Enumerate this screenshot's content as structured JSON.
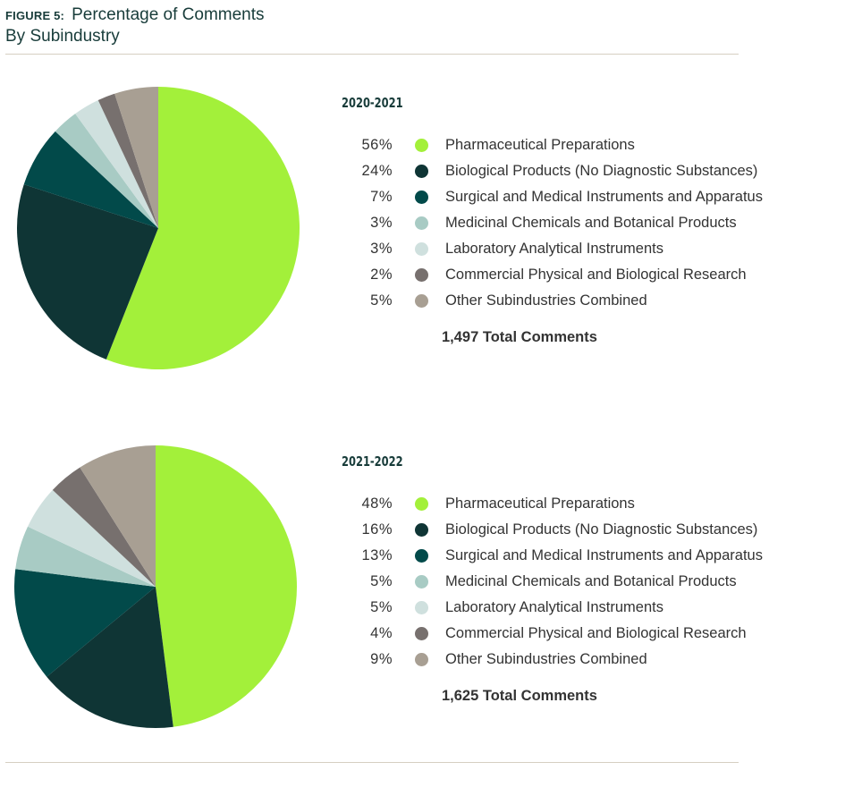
{
  "header": {
    "figure_label": "FIGURE 5:",
    "title": "Percentage of Comments",
    "subtitle": "By Subindustry"
  },
  "chart_data": [
    {
      "type": "pie",
      "title": "2020-2021",
      "categories": [
        "Pharmaceutical Preparations",
        "Biological Products (No Diagnostic Substances)",
        "Surgical and Medical Instruments and Apparatus",
        "Medicinal Chemicals and Botanical Products",
        "Laboratory Analytical Instruments",
        "Commercial Physical and Biological Research",
        "Other Subindustries Combined"
      ],
      "values": [
        56,
        24,
        7,
        3,
        3,
        2,
        5
      ],
      "labels": [
        "56%",
        "24%",
        "7%",
        "3%",
        "3%",
        "2%",
        "5%"
      ],
      "total": "1,497 Total Comments"
    },
    {
      "type": "pie",
      "title": "2021-2022",
      "categories": [
        "Pharmaceutical Preparations",
        "Biological Products (No Diagnostic Substances)",
        "Surgical and Medical Instruments and Apparatus",
        "Medicinal Chemicals and Botanical Products",
        "Laboratory Analytical Instruments",
        "Commercial Physical and Biological Research",
        "Other Subindustries Combined"
      ],
      "values": [
        48,
        16,
        13,
        5,
        5,
        4,
        9
      ],
      "labels": [
        "48%",
        "16%",
        "13%",
        "5%",
        "5%",
        "4%",
        "9%"
      ],
      "total": "1,625 Total Comments"
    }
  ],
  "colors": [
    "#a3f03a",
    "#0f3535",
    "#024a4a",
    "#a8cbc4",
    "#cfe0de",
    "#77706e",
    "#a89f93"
  ]
}
